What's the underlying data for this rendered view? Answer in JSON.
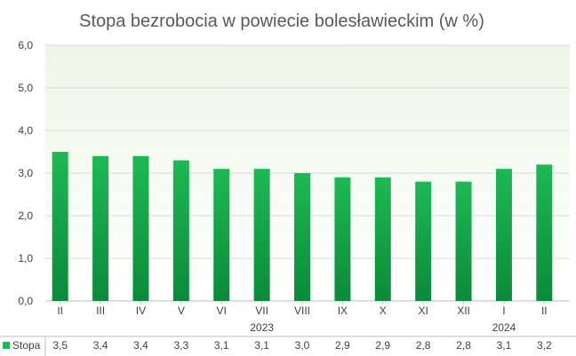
{
  "chart_data": {
    "type": "bar",
    "title": "Stopa bezrobocia w powiecie bolesławieckim (w %)",
    "categories": [
      "II",
      "III",
      "IV",
      "V",
      "VI",
      "VII",
      "VIII",
      "IX",
      "X",
      "XI",
      "XII",
      "I",
      "II"
    ],
    "year_labels": [
      {
        "label": "2023",
        "index": 5
      },
      {
        "label": "2024",
        "index": 11
      }
    ],
    "series": [
      {
        "name": "Stopa",
        "values": [
          3.5,
          3.4,
          3.4,
          3.3,
          3.1,
          3.1,
          3.0,
          2.9,
          2.9,
          2.8,
          2.8,
          3.1,
          3.2
        ],
        "value_labels": [
          "3,5",
          "3,4",
          "3,4",
          "3,3",
          "3,1",
          "3,1",
          "3,0",
          "2,9",
          "2,9",
          "2,8",
          "2,8",
          "3,1",
          "3,2"
        ]
      }
    ],
    "ylim": [
      0,
      6
    ],
    "yticks": [
      "0,0",
      "1,0",
      "2,0",
      "3,0",
      "4,0",
      "5,0",
      "6,0"
    ],
    "grid": true,
    "legend": "bottom-left data table",
    "colors": {
      "bar_top": "#1db954",
      "bar_bottom": "#0b8a3a",
      "plot_bg_top": "#eef6e8",
      "plot_bg_bottom": "#ffffff",
      "grid": "#d9d9d9"
    }
  }
}
